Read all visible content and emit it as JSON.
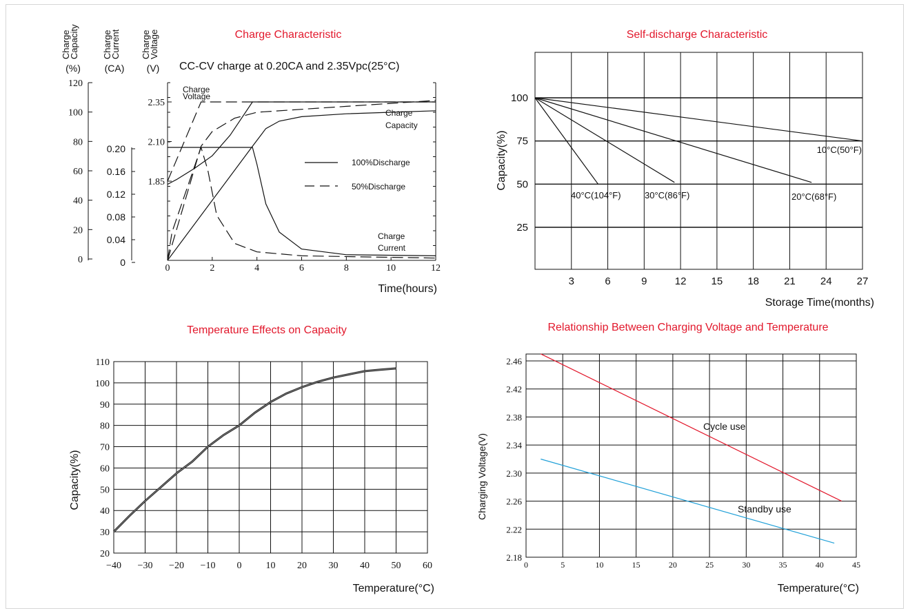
{
  "colors": {
    "title": "#e2182c",
    "line": "#111111",
    "grid": "#111111",
    "cycle": "#e2182c",
    "standby": "#20a0d8"
  },
  "chart_data": [
    {
      "id": "charge",
      "type": "line",
      "title": "Charge Characteristic",
      "subtitle": "CC-CV charge at 0.20CA and 2.35Vpc(25°C)",
      "xlabel": "Time(hours)",
      "x_ticks": [
        "0",
        "2",
        "4",
        "6",
        "8",
        "10",
        "12"
      ],
      "xlim": [
        0,
        12
      ],
      "axes": [
        {
          "label_lines": [
            "Charge",
            "Capacity"
          ],
          "unit": "(%)",
          "ticks": [
            "120",
            "100",
            "80",
            "60",
            "40",
            "20",
            "0"
          ],
          "range": [
            0,
            120
          ]
        },
        {
          "label_lines": [
            "Charge",
            "Current"
          ],
          "unit": "(CA)",
          "ticks": [
            "0.20",
            "0.16",
            "0.12",
            "0.08",
            "0.04",
            "0"
          ],
          "range": [
            0,
            0.2
          ]
        },
        {
          "label_lines": [
            "Charge",
            "Voltage"
          ],
          "unit": "(V)",
          "ticks": [
            "2.35",
            "2.10",
            "1.85"
          ],
          "range": [
            1.6,
            2.45
          ]
        }
      ],
      "legend": [
        {
          "name": "100%Discharge",
          "style": "solid"
        },
        {
          "name": "50%Discharge",
          "style": "dashed"
        }
      ],
      "legend_position": "center-right",
      "annotations": [
        "Charge Voltage",
        "Charge Capacity",
        "Charge Current"
      ],
      "series": [
        {
          "quantity": "voltage",
          "discharge": "100%",
          "style": "solid",
          "x": [
            0,
            0.4,
            1.2,
            2.0,
            2.8,
            3.8,
            12
          ],
          "y": [
            1.83,
            1.86,
            1.93,
            2.01,
            2.14,
            2.35,
            2.35
          ]
        },
        {
          "quantity": "voltage",
          "discharge": "50%",
          "style": "dashed",
          "x": [
            0,
            1.5,
            12
          ],
          "y": [
            1.85,
            2.35,
            2.35
          ]
        },
        {
          "quantity": "capacity",
          "discharge": "100%",
          "style": "solid",
          "x": [
            0,
            3.8,
            4.4,
            5.0,
            6.0,
            8.0,
            10.0,
            12.0
          ],
          "y": [
            0,
            77,
            89,
            94,
            97,
            99,
            100,
            101
          ]
        },
        {
          "quantity": "capacity",
          "discharge": "50%",
          "style": "dashed",
          "x": [
            0,
            1.5,
            2.0,
            3.0,
            4.0,
            6.0,
            8.0,
            10.0,
            12.0
          ],
          "y": [
            0,
            77,
            87,
            96,
            100,
            102,
            104,
            106,
            108
          ]
        },
        {
          "quantity": "current",
          "discharge": "100%",
          "style": "solid",
          "x": [
            0,
            3.8,
            4.0,
            4.4,
            5.0,
            6.0,
            8.0,
            12.0
          ],
          "y": [
            0.2,
            0.2,
            0.17,
            0.1,
            0.05,
            0.02,
            0.01,
            0.008
          ]
        },
        {
          "quantity": "current",
          "discharge": "50%",
          "style": "dashed",
          "x": [
            0,
            0.2,
            1.5,
            1.8,
            2.2,
            3.0,
            4.0,
            6.0,
            12.0
          ],
          "y": [
            0,
            0.05,
            0.2,
            0.16,
            0.08,
            0.03,
            0.015,
            0.008,
            0.004
          ]
        }
      ]
    },
    {
      "id": "selfdischarge",
      "type": "line",
      "title": "Self-discharge Characteristic",
      "xlabel": "Storage  Time(months)",
      "ylabel": "Capacity(%)",
      "x_ticks": [
        "3",
        "6",
        "9",
        "12",
        "15",
        "18",
        "21",
        "24",
        "27"
      ],
      "y_ticks": [
        "100",
        "75",
        "50",
        "25"
      ],
      "xlim": [
        0,
        27
      ],
      "ylim": [
        -5,
        125
      ],
      "grid": true,
      "series": [
        {
          "name": "40°C(104°F)",
          "x": [
            0,
            5.2
          ],
          "y": [
            100,
            50
          ]
        },
        {
          "name": "30°C(86°F)",
          "x": [
            0,
            11.5
          ],
          "y": [
            100,
            51
          ]
        },
        {
          "name": "20°C(68°F)",
          "x": [
            0,
            22.8
          ],
          "y": [
            100,
            51
          ]
        },
        {
          "name": "10°C(50°F)",
          "x": [
            0,
            27
          ],
          "y": [
            100,
            75
          ]
        }
      ]
    },
    {
      "id": "temperature",
      "type": "line",
      "title": "Temperature Effects on Capacity",
      "xlabel": "Temperature(°C)",
      "ylabel": "Capacity(%)",
      "x_ticks": [
        "−40",
        "−30",
        "−20",
        "−10",
        "0",
        "10",
        "20",
        "30",
        "40",
        "50",
        "60"
      ],
      "y_ticks": [
        "110",
        "100",
        "90",
        "80",
        "70",
        "60",
        "50",
        "40",
        "30",
        "20"
      ],
      "xlim": [
        -40,
        60
      ],
      "ylim": [
        20,
        110
      ],
      "grid": true,
      "series": [
        {
          "x": [
            -40,
            -35,
            -30,
            -25,
            -20,
            -15,
            -10,
            -5,
            0,
            5,
            10,
            15,
            20,
            25,
            30,
            35,
            40,
            45,
            50
          ],
          "y": [
            30,
            37.5,
            44.5,
            51,
            57.5,
            63,
            70,
            75.5,
            80,
            86,
            91,
            95,
            98,
            100.5,
            102.5,
            104,
            105.5,
            106.2,
            106.8
          ]
        }
      ]
    },
    {
      "id": "voltage",
      "type": "line",
      "title": "Relationship Between Charging Voltage and Temperature",
      "xlabel": "Temperature(°C)",
      "ylabel": "Charging Voltage(V)",
      "x_ticks": [
        "0",
        "5",
        "10",
        "15",
        "20",
        "25",
        "30",
        "35",
        "40",
        "45"
      ],
      "y_ticks": [
        "2.46",
        "2.42",
        "2.38",
        "2.34",
        "2.30",
        "2.26",
        "2.22",
        "2.18"
      ],
      "xlim": [
        0,
        45
      ],
      "ylim": [
        2.18,
        2.47
      ],
      "grid": true,
      "series": [
        {
          "name": "Cycle use",
          "x": [
            2,
            43
          ],
          "y": [
            2.47,
            2.26
          ]
        },
        {
          "name": "Standby use",
          "x": [
            2,
            42
          ],
          "y": [
            2.32,
            2.2
          ]
        }
      ]
    }
  ]
}
